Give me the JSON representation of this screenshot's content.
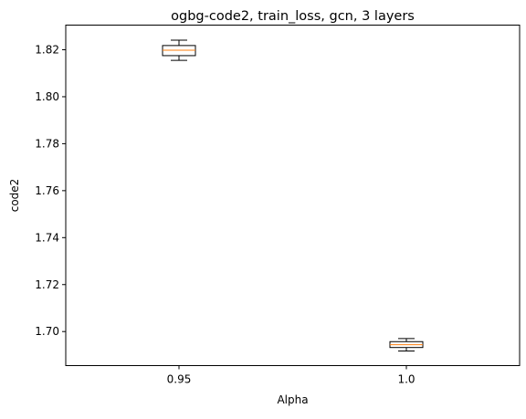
{
  "chart_data": {
    "type": "box",
    "title": "ogbg-code2, train_loss, gcn, 3 layers",
    "xlabel": "Alpha",
    "ylabel": "code2",
    "categories": [
      "0.95",
      "1.0"
    ],
    "boxes": [
      {
        "category": "0.95",
        "whisker_low": 1.8155,
        "q1": 1.8175,
        "median": 1.8198,
        "q3": 1.8218,
        "whisker_high": 1.8241
      },
      {
        "category": "1.0",
        "whisker_low": 1.6917,
        "q1": 1.6932,
        "median": 1.6944,
        "q3": 1.6957,
        "whisker_high": 1.697
      }
    ],
    "ylim": [
      1.6855,
      1.8305
    ],
    "yticks": [
      1.7,
      1.72,
      1.74,
      1.76,
      1.78,
      1.8,
      1.82
    ],
    "ytick_labels": [
      "1.70",
      "1.72",
      "1.74",
      "1.76",
      "1.78",
      "1.80",
      "1.82"
    ],
    "grid": false,
    "colors": {
      "box": "#000000",
      "median": "#ff7f0e"
    }
  }
}
